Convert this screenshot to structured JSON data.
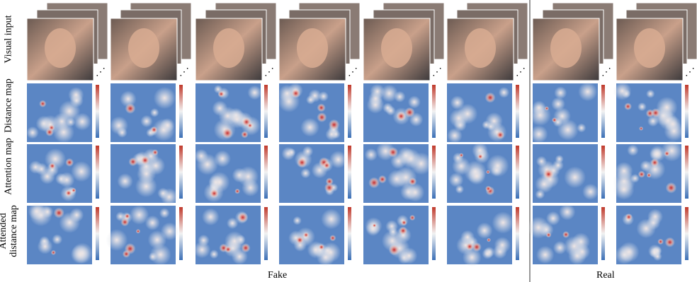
{
  "row_labels": [
    "Visual input",
    "Distance map",
    "Attention map",
    "Attended distance map"
  ],
  "group_labels": [
    "Fake",
    "Real"
  ]
}
